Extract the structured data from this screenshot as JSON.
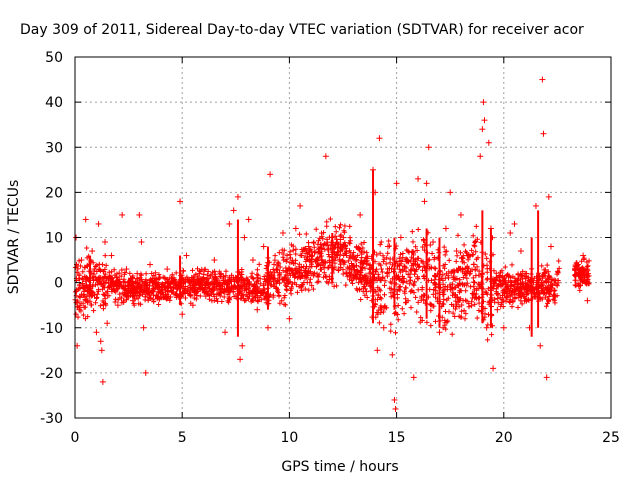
{
  "chart_data": {
    "type": "scatter",
    "title": "Day 309 of 2011, Sidereal Day-to-day VTEC variation (SDTVAR) for receiver acor",
    "xlabel": "GPS time / hours",
    "ylabel": "SDTVAR / TECUs",
    "xlim": [
      0,
      25
    ],
    "ylim": [
      -30,
      50
    ],
    "xticks": [
      0,
      5,
      10,
      15,
      20,
      25
    ],
    "yticks": [
      -30,
      -20,
      -10,
      0,
      10,
      20,
      30,
      40,
      50
    ],
    "xtick_labels": [
      "0",
      "5",
      "10",
      "15",
      "20",
      "25"
    ],
    "ytick_labels": [
      "-30",
      "-20",
      "-10",
      "0",
      "10",
      "20",
      "30",
      "40",
      "50"
    ],
    "grid": true,
    "marker": "+",
    "color": "#ff0000",
    "series": [
      {
        "name": "SDTVAR",
        "points": [
          [
            0.05,
            10
          ],
          [
            0.1,
            -14
          ],
          [
            0.2,
            -6
          ],
          [
            0.3,
            5
          ],
          [
            0.5,
            14
          ],
          [
            0.6,
            -2
          ],
          [
            0.8,
            7
          ],
          [
            0.9,
            3
          ],
          [
            1.0,
            -11
          ],
          [
            1.1,
            13
          ],
          [
            1.2,
            -13
          ],
          [
            1.25,
            -15
          ],
          [
            1.3,
            -22
          ],
          [
            1.4,
            9
          ],
          [
            1.5,
            -9
          ],
          [
            1.7,
            6
          ],
          [
            2.0,
            -5
          ],
          [
            2.2,
            15
          ],
          [
            2.4,
            3
          ],
          [
            2.7,
            -4
          ],
          [
            2.9,
            2
          ],
          [
            3.0,
            15
          ],
          [
            3.1,
            9
          ],
          [
            3.2,
            -10
          ],
          [
            3.3,
            -20
          ],
          [
            3.5,
            4
          ],
          [
            4.0,
            -3
          ],
          [
            4.3,
            3
          ],
          [
            4.9,
            18
          ],
          [
            5.0,
            -7
          ],
          [
            5.2,
            6
          ],
          [
            5.5,
            -5
          ],
          [
            5.8,
            2
          ],
          [
            6.1,
            -3
          ],
          [
            6.5,
            5
          ],
          [
            6.8,
            2
          ],
          [
            7.0,
            -11
          ],
          [
            7.2,
            13
          ],
          [
            7.4,
            16
          ],
          [
            7.6,
            19
          ],
          [
            7.7,
            -17
          ],
          [
            7.8,
            -14
          ],
          [
            7.9,
            10
          ],
          [
            8.1,
            14
          ],
          [
            8.3,
            5
          ],
          [
            8.5,
            -6
          ],
          [
            8.8,
            8
          ],
          [
            9.0,
            -10
          ],
          [
            9.1,
            24
          ],
          [
            9.4,
            3
          ],
          [
            9.7,
            11
          ],
          [
            10.0,
            -8
          ],
          [
            10.3,
            12
          ],
          [
            10.5,
            17
          ],
          [
            10.9,
            8
          ],
          [
            11.5,
            5
          ],
          [
            11.7,
            28
          ],
          [
            12.3,
            3
          ],
          [
            12.8,
            2
          ],
          [
            13.3,
            15
          ],
          [
            13.6,
            -2
          ],
          [
            13.9,
            25
          ],
          [
            14.0,
            20
          ],
          [
            14.1,
            -15
          ],
          [
            14.2,
            32
          ],
          [
            14.4,
            -10
          ],
          [
            14.6,
            8
          ],
          [
            14.8,
            -16
          ],
          [
            14.9,
            -26
          ],
          [
            14.95,
            -28
          ],
          [
            15.0,
            22
          ],
          [
            15.2,
            10
          ],
          [
            15.5,
            5
          ],
          [
            15.8,
            -21
          ],
          [
            16.0,
            23
          ],
          [
            16.3,
            18
          ],
          [
            16.4,
            22
          ],
          [
            16.5,
            30
          ],
          [
            16.7,
            9
          ],
          [
            17.0,
            -11
          ],
          [
            17.3,
            12
          ],
          [
            17.5,
            20
          ],
          [
            17.8,
            7
          ],
          [
            18.0,
            15
          ],
          [
            18.3,
            6
          ],
          [
            18.6,
            4
          ],
          [
            18.9,
            28
          ],
          [
            19.0,
            34
          ],
          [
            19.05,
            40
          ],
          [
            19.1,
            36
          ],
          [
            19.2,
            -10
          ],
          [
            19.3,
            31
          ],
          [
            19.4,
            12
          ],
          [
            19.5,
            -19
          ],
          [
            19.7,
            -6
          ],
          [
            20.0,
            -10
          ],
          [
            20.3,
            11
          ],
          [
            20.5,
            13
          ],
          [
            20.8,
            7
          ],
          [
            21.0,
            2
          ],
          [
            21.2,
            -10
          ],
          [
            21.5,
            17
          ],
          [
            21.7,
            -14
          ],
          [
            21.8,
            45
          ],
          [
            21.85,
            33
          ],
          [
            22.0,
            -21
          ],
          [
            22.1,
            19
          ],
          [
            22.2,
            8
          ],
          [
            22.4,
            -3
          ],
          [
            23.5,
            2
          ],
          [
            23.7,
            6
          ],
          [
            23.9,
            -4
          ]
        ]
      }
    ]
  }
}
